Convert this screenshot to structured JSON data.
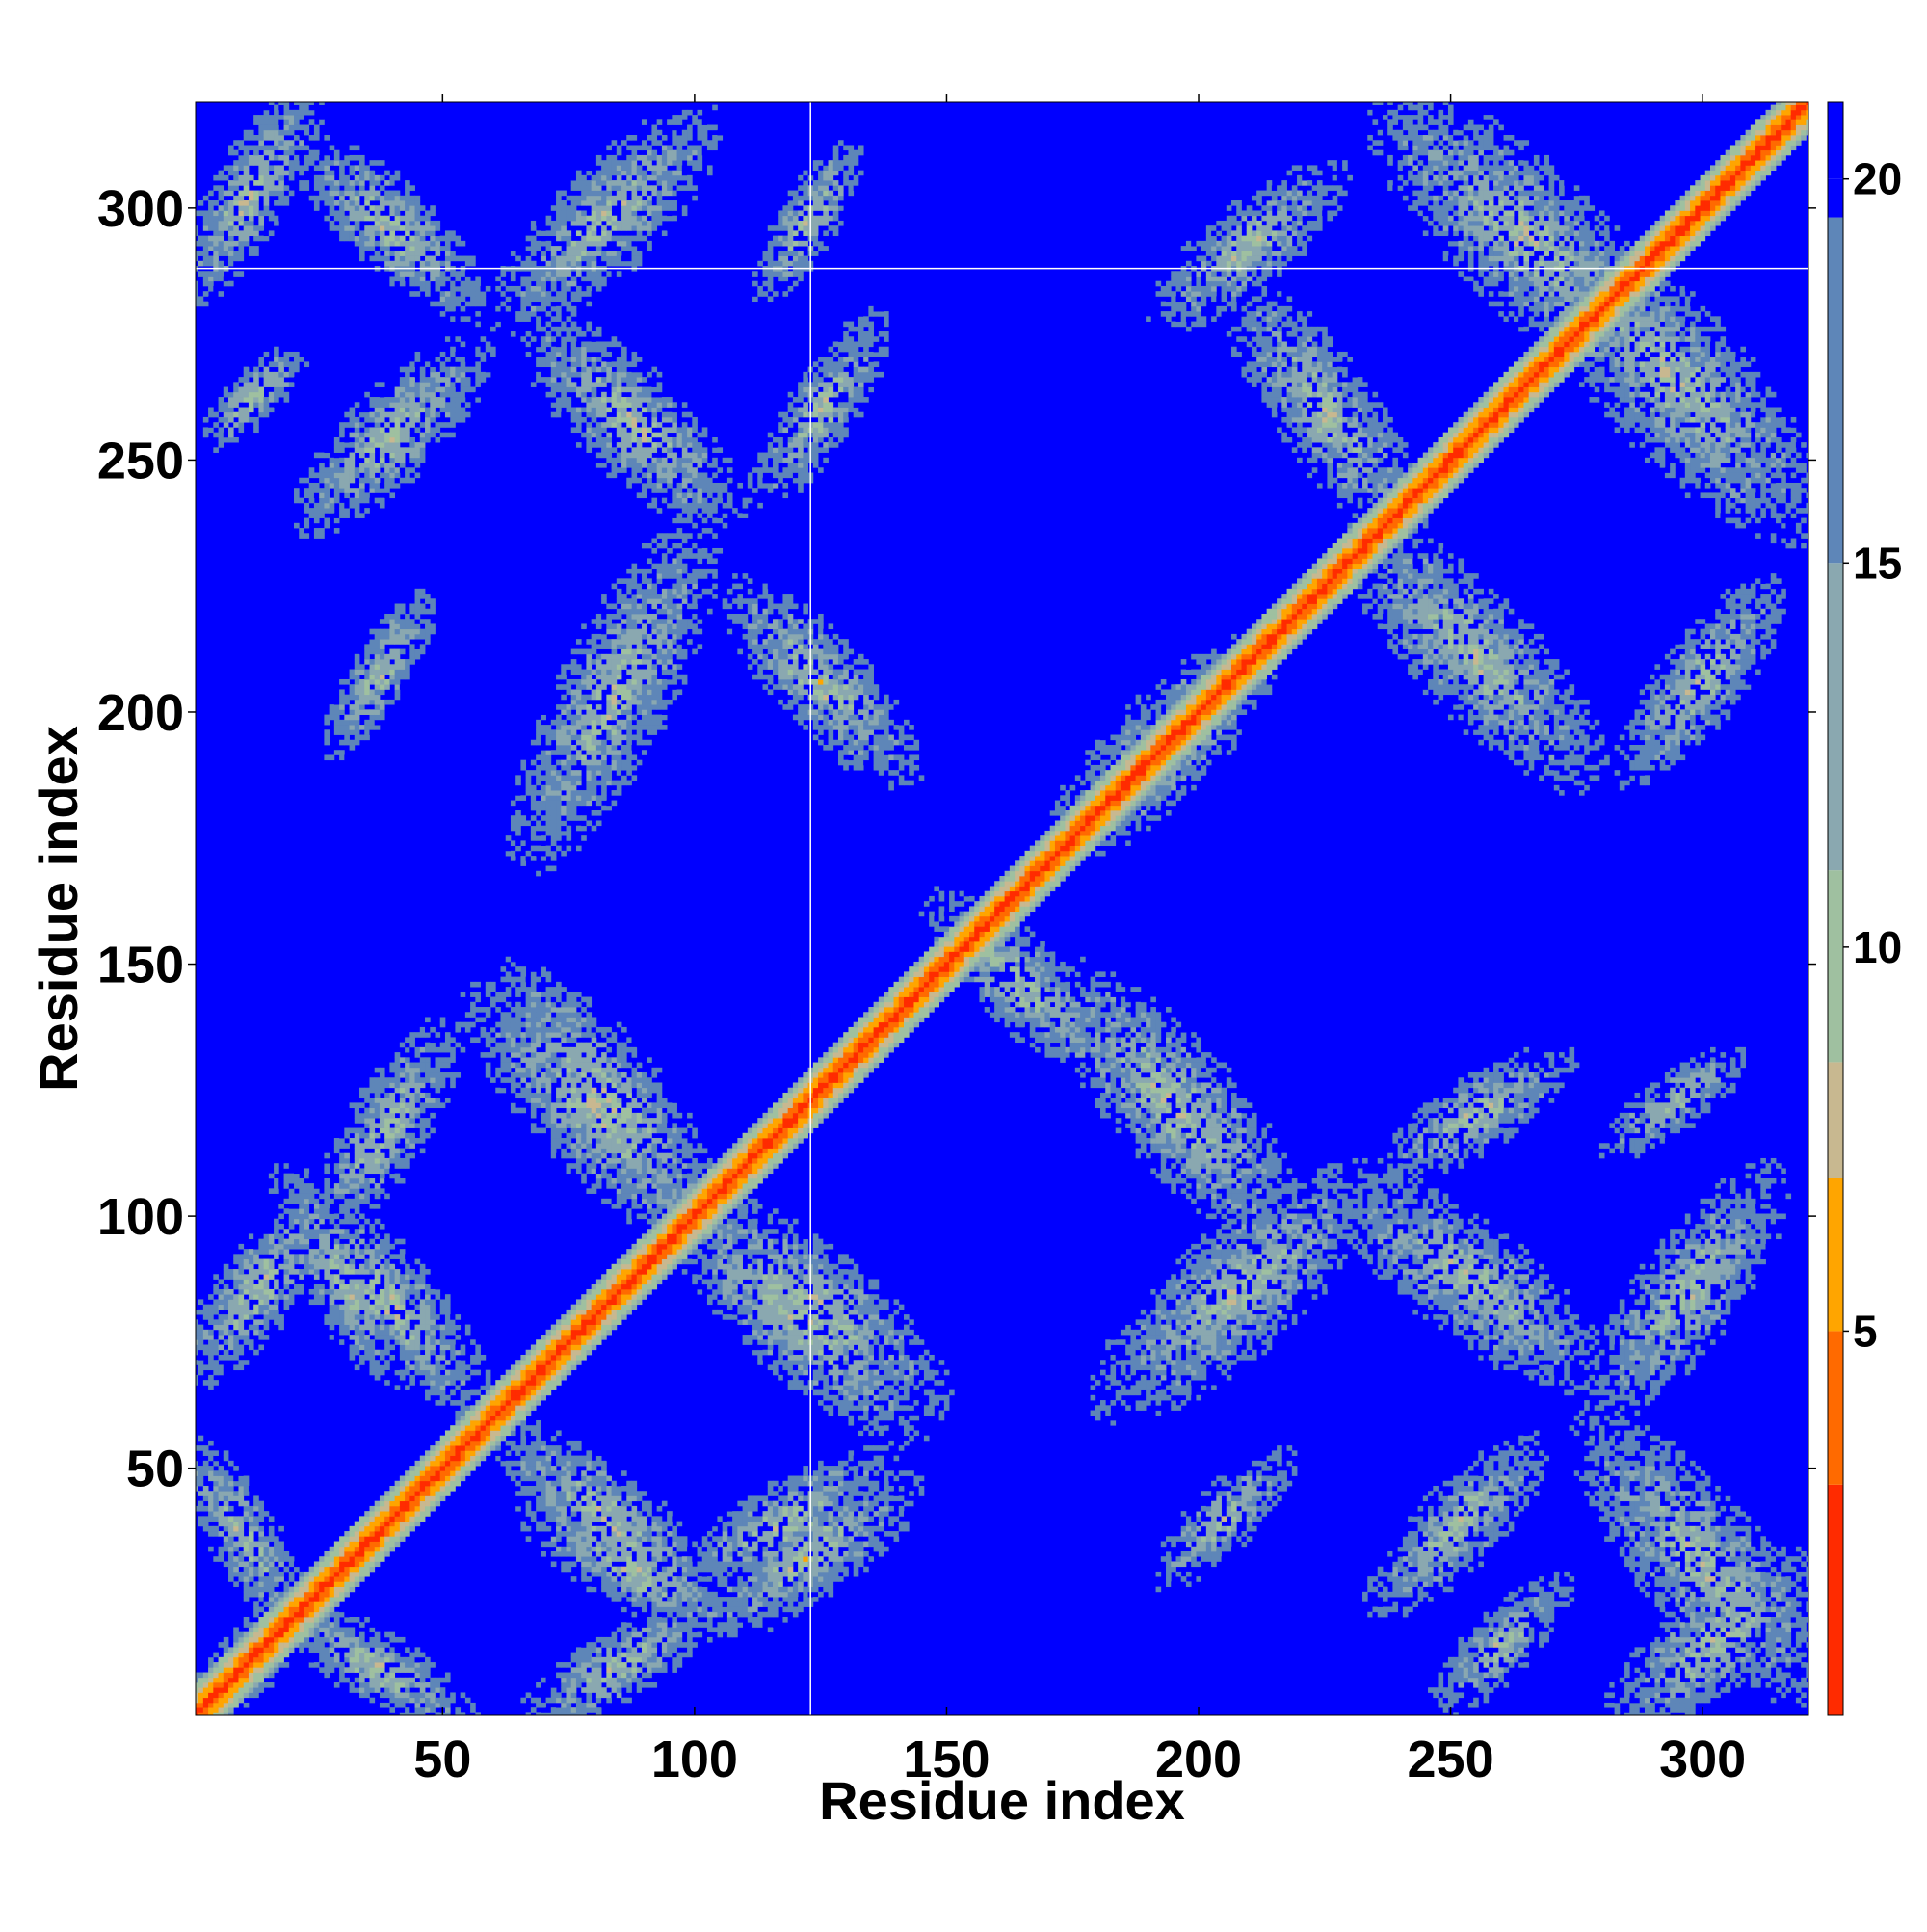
{
  "chart_data": {
    "type": "heatmap",
    "title": "",
    "xlabel": "Residue index",
    "ylabel": "Residue index",
    "xlim": [
      1,
      321
    ],
    "ylim": [
      1,
      321
    ],
    "x_ticks": [
      50,
      100,
      150,
      200,
      250,
      300
    ],
    "y_ticks": [
      50,
      100,
      150,
      200,
      250,
      300
    ],
    "colorbar": {
      "range": [
        0,
        21
      ],
      "ticks": [
        5,
        10,
        15,
        20
      ],
      "colors": [
        {
          "value": 0,
          "color": "#ff0000"
        },
        {
          "value": 3,
          "color": "#ff2b00"
        },
        {
          "value": 5,
          "color": "#ff6a00"
        },
        {
          "value": 7,
          "color": "#ffa500"
        },
        {
          "value": 8.5,
          "color": "#c8b890"
        },
        {
          "value": 11,
          "color": "#9fc0a0"
        },
        {
          "value": 15,
          "color": "#8aa8b0"
        },
        {
          "value": 19.5,
          "color": "#5e86b8"
        },
        {
          "value": 20,
          "color": "#0000ff"
        }
      ],
      "background_color": "#0000ff"
    },
    "diagonal": {
      "start": 1,
      "end": 321
    },
    "reference_lines": {
      "x": 123,
      "y": 288
    },
    "contact_blocks": [
      {
        "x": [
          1,
          22
        ],
        "y": [
          1,
          22
        ],
        "orientation": "diag"
      },
      {
        "x": [
          1,
          20
        ],
        "y": [
          22,
          52
        ],
        "orientation": "anti"
      },
      {
        "x": [
          22,
          52
        ],
        "y": [
          1,
          20
        ],
        "orientation": "anti"
      },
      {
        "x": [
          25,
          55
        ],
        "y": [
          65,
          100
        ],
        "orientation": "anti"
      },
      {
        "x": [
          65,
          100
        ],
        "y": [
          25,
          55
        ],
        "orientation": "anti"
      },
      {
        "x": [
          28,
          50
        ],
        "y": [
          100,
          135
        ],
        "orientation": "diag"
      },
      {
        "x": [
          100,
          135
        ],
        "y": [
          28,
          50
        ],
        "orientation": "diag"
      },
      {
        "x": [
          60,
          100
        ],
        "y": [
          100,
          142
        ],
        "orientation": "anti"
      },
      {
        "x": [
          100,
          142
        ],
        "y": [
          60,
          100
        ],
        "orientation": "anti"
      },
      {
        "x": [
          102,
          145
        ],
        "y": [
          65,
          100
        ],
        "orientation": "anti"
      },
      {
        "x": [
          65,
          100
        ],
        "y": [
          102,
          145
        ],
        "orientation": "anti"
      },
      {
        "x": [
          70,
          105
        ],
        "y": [
          20,
          40
        ],
        "orientation": "anti"
      },
      {
        "x": [
          20,
          40
        ],
        "y": [
          70,
          105
        ],
        "orientation": "anti"
      },
      {
        "x": [
          105,
          140
        ],
        "y": [
          20,
          45
        ],
        "orientation": "diag"
      },
      {
        "x": [
          70,
          100
        ],
        "y": [
          2,
          20
        ],
        "orientation": "diag"
      },
      {
        "x": [
          1,
          25
        ],
        "y": [
          70,
          100
        ],
        "orientation": "diag"
      },
      {
        "x": [
          5,
          20
        ],
        "y": [
          255,
          270
        ],
        "orientation": "diag"
      },
      {
        "x": [
          25,
          55
        ],
        "y": [
          240,
          270
        ],
        "orientation": "diag"
      },
      {
        "x": [
          70,
          105
        ],
        "y": [
          240,
          275
        ],
        "orientation": "anti"
      },
      {
        "x": [
          115,
          135
        ],
        "y": [
          245,
          275
        ],
        "orientation": "diag"
      },
      {
        "x": [
          30,
          45
        ],
        "y": [
          195,
          220
        ],
        "orientation": "diag"
      },
      {
        "x": [
          68,
          100
        ],
        "y": [
          175,
          232
        ],
        "orientation": "diag"
      },
      {
        "x": [
          110,
          140
        ],
        "y": [
          190,
          222
        ],
        "orientation": "anti"
      },
      {
        "x": [
          65,
          100
        ],
        "y": [
          280,
          315
        ],
        "orientation": "diag"
      },
      {
        "x": [
          115,
          130
        ],
        "y": [
          285,
          310
        ],
        "orientation": "diag"
      },
      {
        "x": [
          1,
          22
        ],
        "y": [
          285,
          320
        ],
        "orientation": "diag"
      },
      {
        "x": [
          25,
          55
        ],
        "y": [
          282,
          310
        ],
        "orientation": "anti"
      },
      {
        "x": [
          150,
          180
        ],
        "y": [
          132,
          160
        ],
        "orientation": "anti"
      },
      {
        "x": [
          175,
          215
        ],
        "y": [
          100,
          145
        ],
        "orientation": "anti"
      },
      {
        "x": [
          185,
          230
        ],
        "y": [
          65,
          105
        ],
        "orientation": "diag"
      },
      {
        "x": [
          210,
          240
        ],
        "y": [
          240,
          280
        ],
        "orientation": "anti"
      },
      {
        "x": [
          175,
          210
        ],
        "y": [
          175,
          210
        ],
        "orientation": "diag"
      },
      {
        "x": [
          235,
          275
        ],
        "y": [
          190,
          232
        ],
        "orientation": "anti"
      },
      {
        "x": [
          232,
          275
        ],
        "y": [
          70,
          105
        ],
        "orientation": "anti"
      },
      {
        "x": [
          240,
          270
        ],
        "y": [
          110,
          130
        ],
        "orientation": "diag"
      },
      {
        "x": [
          240,
          290
        ],
        "y": [
          270,
          318
        ],
        "orientation": "anti"
      },
      {
        "x": [
          270,
          318
        ],
        "y": [
          240,
          292
        ],
        "orientation": "anti"
      },
      {
        "x": [
          280,
          320
        ],
        "y": [
          8,
          55
        ],
        "orientation": "anti"
      },
      {
        "x": [
          285,
          320
        ],
        "y": [
          1,
          30
        ],
        "orientation": "diag"
      },
      {
        "x": [
          282,
          312
        ],
        "y": [
          65,
          105
        ],
        "orientation": "diag"
      },
      {
        "x": [
          284,
          305
        ],
        "y": [
          115,
          130
        ],
        "orientation": "diag"
      },
      {
        "x": [
          287,
          312
        ],
        "y": [
          190,
          222
        ],
        "orientation": "diag"
      },
      {
        "x": [
          195,
          215
        ],
        "y": [
          30,
          50
        ],
        "orientation": "diag"
      },
      {
        "x": [
          238,
          265
        ],
        "y": [
          25,
          52
        ],
        "orientation": "diag"
      },
      {
        "x": [
          250,
          270
        ],
        "y": [
          5,
          25
        ],
        "orientation": "diag"
      },
      {
        "x": [
          195,
          225
        ],
        "y": [
          280,
          305
        ],
        "orientation": "diag"
      }
    ]
  }
}
